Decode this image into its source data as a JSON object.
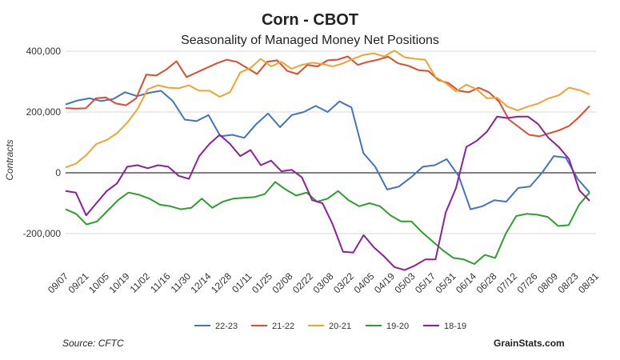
{
  "chart_data": {
    "type": "line",
    "title": "Corn - CBOT",
    "subtitle": "Seasonality of Managed Money Net Positions",
    "ylabel": "Contracts",
    "xlabel": "",
    "ylim": [
      -300000,
      400000
    ],
    "yticks": [
      400000,
      200000,
      0,
      -200000
    ],
    "ytick_labels": [
      "400,000",
      "200,000",
      "0",
      "-200,000"
    ],
    "x_tick_labels": [
      "09/07",
      "09/21",
      "10/05",
      "10/19",
      "11/02",
      "11/16",
      "11/30",
      "12/14",
      "12/28",
      "01/11",
      "01/25",
      "02/08",
      "02/22",
      "03/08",
      "03/22",
      "04/05",
      "04/19",
      "05/03",
      "05/17",
      "05/31",
      "06/14",
      "06/28",
      "07/12",
      "07/26",
      "08/09",
      "08/23",
      "08/31"
    ],
    "legend": [
      "22-23",
      "21-22",
      "20-21",
      "19-20",
      "18-19"
    ],
    "series": [
      {
        "name": "22-23",
        "color": "#4472c4",
        "values": [
          225000,
          238000,
          245000,
          236000,
          243000,
          265000,
          252000,
          263000,
          270000,
          236000,
          175000,
          170000,
          190000,
          120000,
          125000,
          115000,
          160000,
          195000,
          150000,
          190000,
          200000,
          220000,
          200000,
          235000,
          215000,
          65000,
          20000,
          -55000,
          -45000,
          -15000,
          20000,
          25000,
          45000,
          -10000,
          -120000,
          -110000,
          -90000,
          -95000,
          -50000,
          -45000,
          0,
          55000,
          50000,
          -20000,
          -65000
        ]
      },
      {
        "name": "21-22",
        "color": "#e24a2a",
        "values": [
          213000,
          211000,
          212000,
          245000,
          248000,
          228000,
          222000,
          245000,
          323000,
          320000,
          340000,
          367000,
          315000,
          330000,
          345000,
          360000,
          372000,
          365000,
          345000,
          325000,
          365000,
          370000,
          335000,
          325000,
          355000,
          350000,
          370000,
          372000,
          383000,
          355000,
          365000,
          372000,
          382000,
          360000,
          352000,
          338000,
          335000,
          305000,
          295000,
          270000,
          265000,
          280000,
          265000,
          235000,
          175000,
          150000,
          125000,
          120000,
          130000,
          140000,
          155000,
          185000,
          220000
        ]
      },
      {
        "name": "20-21",
        "color": "#f2a22f",
        "values": [
          18000,
          30000,
          58000,
          95000,
          108000,
          130000,
          165000,
          210000,
          275000,
          288000,
          280000,
          278000,
          288000,
          270000,
          270000,
          250000,
          265000,
          330000,
          345000,
          375000,
          350000,
          365000,
          342000,
          355000,
          362000,
          358000,
          350000,
          360000,
          375000,
          388000,
          393000,
          383000,
          402000,
          380000,
          375000,
          372000,
          315000,
          295000,
          268000,
          290000,
          275000,
          245000,
          247000,
          218000,
          205000,
          218000,
          228000,
          245000,
          255000,
          280000,
          272000,
          258000
        ]
      },
      {
        "name": "19-20",
        "color": "#2ca02c",
        "values": [
          -120000,
          -135000,
          -170000,
          -160000,
          -125000,
          -90000,
          -65000,
          -72000,
          -85000,
          -105000,
          -110000,
          -120000,
          -115000,
          -85000,
          -115000,
          -95000,
          -85000,
          -82000,
          -80000,
          -70000,
          -30000,
          -55000,
          -75000,
          -65000,
          -95000,
          -85000,
          -60000,
          -90000,
          -110000,
          -100000,
          -110000,
          -140000,
          -160000,
          -160000,
          -195000,
          -225000,
          -255000,
          -280000,
          -285000,
          -300000,
          -270000,
          -280000,
          -200000,
          -142000,
          -135000,
          -138000,
          -145000,
          -175000,
          -172000,
          -105000,
          -65000
        ]
      },
      {
        "name": "18-19",
        "color": "#8e1f9e",
        "values": [
          -60000,
          -65000,
          -140000,
          -100000,
          -60000,
          -35000,
          20000,
          25000,
          15000,
          25000,
          20000,
          -10000,
          -20000,
          55000,
          95000,
          125000,
          95000,
          55000,
          75000,
          25000,
          40000,
          5000,
          10000,
          -15000,
          -90000,
          -100000,
          -170000,
          -260000,
          -262000,
          -205000,
          -245000,
          -275000,
          -310000,
          -320000,
          -305000,
          -285000,
          -285000,
          -130000,
          -50000,
          85000,
          105000,
          135000,
          185000,
          180000,
          185000,
          185000,
          160000,
          115000,
          85000,
          45000,
          -58000,
          -92000
        ]
      }
    ]
  },
  "source_note": "Source: CFTC",
  "brand": "GrainStats.com"
}
